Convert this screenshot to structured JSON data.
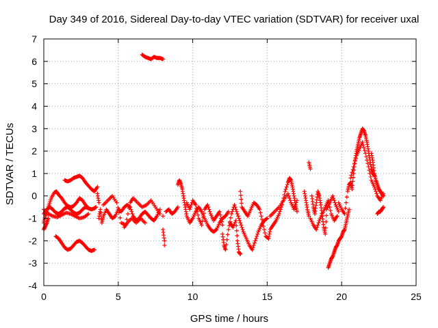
{
  "chart_data": {
    "type": "scatter",
    "title": "Day 349 of 2016, Sidereal Day-to-day VTEC variation (SDTVAR) for receiver uxal",
    "xlabel": "GPS time / hours",
    "ylabel": "SDTVAR / TECUs",
    "xlim": [
      0,
      25
    ],
    "ylim": [
      -4,
      7
    ],
    "xticks": [
      "0",
      "5",
      "10",
      "15",
      "20",
      "25"
    ],
    "yticks": [
      "-4",
      "-3",
      "-2",
      "-1",
      "0",
      "1",
      "2",
      "3",
      "4",
      "5",
      "6",
      "7"
    ],
    "grid": true,
    "marker": "+",
    "color": "#ff0000",
    "series": [
      {
        "name": "SDTVAR",
        "points": [
          [
            0.0,
            -1.2
          ],
          [
            0.1,
            -0.9
          ],
          [
            0.2,
            -0.7
          ],
          [
            0.35,
            -0.4
          ],
          [
            0.5,
            -0.1
          ],
          [
            0.7,
            0.15
          ],
          [
            0.85,
            0.2
          ],
          [
            1.0,
            0.05
          ],
          [
            1.2,
            -0.1
          ],
          [
            1.4,
            -0.3
          ],
          [
            1.6,
            -0.45
          ],
          [
            1.8,
            -0.5
          ],
          [
            2.0,
            -0.45
          ],
          [
            2.2,
            -0.3
          ],
          [
            2.4,
            -0.1
          ],
          [
            2.6,
            -0.2
          ],
          [
            2.8,
            -0.4
          ],
          [
            3.0,
            -0.55
          ],
          [
            3.2,
            -0.6
          ],
          [
            3.4,
            -0.55
          ],
          [
            3.5,
            -0.5
          ],
          [
            0.0,
            -0.8
          ],
          [
            0.2,
            -0.6
          ],
          [
            0.4,
            -0.5
          ],
          [
            0.6,
            -0.6
          ],
          [
            0.8,
            -0.75
          ],
          [
            1.0,
            -0.8
          ],
          [
            1.2,
            -0.7
          ],
          [
            1.4,
            -0.55
          ],
          [
            1.6,
            -0.5
          ],
          [
            1.8,
            -0.6
          ],
          [
            2.0,
            -0.75
          ],
          [
            2.2,
            -0.8
          ],
          [
            2.4,
            -0.75
          ],
          [
            2.6,
            -0.6
          ],
          [
            2.8,
            -0.5
          ],
          [
            3.0,
            -0.55
          ],
          [
            0.0,
            -0.6
          ],
          [
            0.3,
            -0.8
          ],
          [
            0.6,
            -0.9
          ],
          [
            0.9,
            -0.95
          ],
          [
            1.2,
            -0.85
          ],
          [
            1.5,
            -0.75
          ],
          [
            1.8,
            -0.8
          ],
          [
            2.1,
            -0.9
          ],
          [
            2.4,
            -1.0
          ],
          [
            2.7,
            -0.95
          ],
          [
            3.0,
            -0.8
          ],
          [
            0.0,
            -1.5
          ],
          [
            0.1,
            -1.35
          ],
          [
            0.2,
            -1.2
          ],
          [
            0.3,
            -1.0
          ],
          [
            0.8,
            -1.8
          ],
          [
            1.0,
            -1.9
          ],
          [
            1.2,
            -2.1
          ],
          [
            1.4,
            -2.3
          ],
          [
            1.6,
            -2.4
          ],
          [
            1.8,
            -2.35
          ],
          [
            2.0,
            -2.2
          ],
          [
            2.2,
            -2.05
          ],
          [
            2.4,
            -2.0
          ],
          [
            2.6,
            -2.1
          ],
          [
            2.8,
            -2.25
          ],
          [
            3.0,
            -2.4
          ],
          [
            3.2,
            -2.45
          ],
          [
            3.4,
            -2.4
          ],
          [
            1.4,
            0.7
          ],
          [
            1.6,
            0.65
          ],
          [
            1.8,
            0.7
          ],
          [
            2.0,
            0.8
          ],
          [
            2.2,
            0.85
          ],
          [
            2.4,
            0.9
          ],
          [
            2.6,
            0.8
          ],
          [
            2.8,
            0.6
          ],
          [
            3.0,
            0.45
          ],
          [
            3.2,
            0.3
          ],
          [
            3.4,
            0.2
          ],
          [
            3.6,
            0.4
          ],
          [
            3.6,
            0.1
          ],
          [
            3.7,
            -0.3
          ],
          [
            3.7,
            -1.0
          ],
          [
            3.8,
            -0.6
          ],
          [
            3.9,
            -1.2
          ],
          [
            4.0,
            -0.9
          ],
          [
            4.2,
            -0.6
          ],
          [
            4.4,
            -0.8
          ],
          [
            4.6,
            -1.0
          ],
          [
            4.8,
            -0.9
          ],
          [
            5.0,
            -0.6
          ],
          [
            5.2,
            -0.7
          ],
          [
            5.4,
            -0.5
          ],
          [
            5.6,
            -0.4
          ],
          [
            5.8,
            -0.5
          ],
          [
            6.0,
            -0.9
          ],
          [
            6.2,
            -1.1
          ],
          [
            6.4,
            -1.0
          ],
          [
            6.6,
            -0.8
          ],
          [
            6.8,
            -0.7
          ],
          [
            7.0,
            -0.85
          ],
          [
            7.2,
            -1.0
          ],
          [
            7.4,
            -1.1
          ],
          [
            7.6,
            -0.9
          ],
          [
            7.8,
            -0.6
          ],
          [
            4.0,
            -0.4
          ],
          [
            4.3,
            -0.2
          ],
          [
            4.6,
            0.0
          ],
          [
            4.9,
            -0.3
          ],
          [
            5.2,
            -1.2
          ],
          [
            5.5,
            -1.3
          ],
          [
            5.8,
            -0.3
          ],
          [
            6.0,
            -0.1
          ],
          [
            6.3,
            -0.3
          ],
          [
            6.6,
            -0.5
          ],
          [
            6.9,
            -0.4
          ],
          [
            7.2,
            -0.2
          ],
          [
            7.5,
            -0.5
          ],
          [
            7.8,
            -0.8
          ],
          [
            5.4,
            -1.4
          ],
          [
            5.6,
            -1.2
          ],
          [
            5.9,
            -1.0
          ],
          [
            6.2,
            -1.2
          ],
          [
            6.5,
            -1.0
          ],
          [
            6.8,
            -1.2
          ],
          [
            6.6,
            6.3
          ],
          [
            6.8,
            6.2
          ],
          [
            7.0,
            6.15
          ],
          [
            7.2,
            6.1
          ],
          [
            7.4,
            6.2
          ],
          [
            7.6,
            6.15
          ],
          [
            7.8,
            6.15
          ],
          [
            8.0,
            6.1
          ],
          [
            8.0,
            -0.9
          ],
          [
            8.0,
            -1.5
          ],
          [
            8.1,
            -2.0
          ],
          [
            8.1,
            -2.2
          ],
          [
            8.2,
            -0.7
          ],
          [
            8.4,
            -0.6
          ],
          [
            8.6,
            -0.8
          ],
          [
            8.8,
            -0.7
          ],
          [
            9.0,
            -0.5
          ],
          [
            9.0,
            0.5
          ],
          [
            9.1,
            0.7
          ],
          [
            9.2,
            0.55
          ],
          [
            9.3,
            0.3
          ],
          [
            9.4,
            -0.1
          ],
          [
            9.5,
            -0.5
          ],
          [
            9.6,
            -0.9
          ],
          [
            9.8,
            -1.2
          ],
          [
            10.0,
            -1.0
          ],
          [
            10.2,
            -0.7
          ],
          [
            10.4,
            -0.5
          ],
          [
            10.6,
            -0.7
          ],
          [
            10.8,
            -1.0
          ],
          [
            11.0,
            -1.3
          ],
          [
            11.2,
            -1.5
          ],
          [
            11.4,
            -1.6
          ],
          [
            11.6,
            -1.5
          ],
          [
            11.8,
            -1.2
          ],
          [
            12.0,
            -1.0
          ],
          [
            12.2,
            -0.9
          ],
          [
            12.4,
            -0.7
          ],
          [
            9.6,
            -0.3
          ],
          [
            9.8,
            -0.6
          ],
          [
            10.0,
            -0.2
          ],
          [
            10.2,
            -0.4
          ],
          [
            10.4,
            -1.0
          ],
          [
            10.6,
            -1.3
          ],
          [
            10.8,
            -0.6
          ],
          [
            11.0,
            -0.4
          ],
          [
            11.2,
            -0.8
          ],
          [
            11.4,
            -1.1
          ],
          [
            11.6,
            -0.9
          ],
          [
            11.8,
            -0.7
          ],
          [
            12.0,
            -1.3
          ],
          [
            12.0,
            -1.7
          ],
          [
            12.1,
            -2.2
          ],
          [
            12.2,
            -2.4
          ],
          [
            12.4,
            -1.5
          ],
          [
            12.6,
            -0.8
          ],
          [
            12.8,
            -0.4
          ],
          [
            13.0,
            -0.8
          ],
          [
            13.2,
            -1.2
          ],
          [
            13.4,
            -1.6
          ],
          [
            13.6,
            -1.9
          ],
          [
            13.8,
            -2.2
          ],
          [
            14.0,
            -2.4
          ],
          [
            14.2,
            -2.0
          ],
          [
            14.4,
            -1.6
          ],
          [
            14.6,
            -1.3
          ],
          [
            14.8,
            -1.1
          ],
          [
            15.0,
            -1.0
          ],
          [
            12.5,
            -1.2
          ],
          [
            12.7,
            -1.4
          ],
          [
            12.9,
            -1.1
          ],
          [
            13.0,
            -2.0
          ],
          [
            13.1,
            -2.5
          ],
          [
            13.2,
            -2.6
          ],
          [
            13.2,
            0.2
          ],
          [
            13.3,
            -0.5
          ],
          [
            13.5,
            -0.7
          ],
          [
            13.7,
            -0.9
          ],
          [
            13.9,
            -0.6
          ],
          [
            14.1,
            -0.3
          ],
          [
            14.3,
            -0.4
          ],
          [
            14.5,
            -0.6
          ],
          [
            14.7,
            -1.2
          ],
          [
            14.9,
            -1.8
          ],
          [
            15.1,
            -1.9
          ],
          [
            15.2,
            -1.5
          ],
          [
            15.4,
            -1.3
          ],
          [
            15.6,
            -1.1
          ],
          [
            15.8,
            -0.8
          ],
          [
            16.0,
            -0.4
          ],
          [
            16.2,
            0.2
          ],
          [
            16.4,
            0.6
          ],
          [
            16.5,
            0.8
          ],
          [
            16.6,
            0.7
          ],
          [
            16.7,
            0.4
          ],
          [
            16.8,
            0.0
          ],
          [
            16.9,
            -0.4
          ],
          [
            17.0,
            -0.7
          ],
          [
            15.2,
            -0.9
          ],
          [
            15.5,
            -0.7
          ],
          [
            15.8,
            -0.5
          ],
          [
            16.1,
            -0.2
          ],
          [
            16.4,
            0.1
          ],
          [
            16.6,
            -0.3
          ],
          [
            16.8,
            -0.6
          ],
          [
            17.0,
            -0.2
          ],
          [
            17.5,
            0.2
          ],
          [
            17.6,
            -0.2
          ],
          [
            17.7,
            -0.6
          ],
          [
            17.8,
            -0.9
          ],
          [
            17.8,
            1.5
          ],
          [
            17.9,
            1.2
          ],
          [
            18.0,
            0.0
          ],
          [
            18.1,
            -0.5
          ],
          [
            18.2,
            -0.8
          ],
          [
            18.3,
            -0.3
          ],
          [
            18.4,
            0.2
          ],
          [
            18.5,
            0.0
          ],
          [
            18.6,
            -0.4
          ],
          [
            18.7,
            -0.9
          ],
          [
            18.8,
            -1.4
          ],
          [
            18.9,
            -1.7
          ],
          [
            19.0,
            -0.6
          ],
          [
            19.2,
            -0.3
          ],
          [
            19.4,
            0.0
          ],
          [
            19.6,
            -0.4
          ],
          [
            19.8,
            -0.7
          ],
          [
            17.9,
            -1.0
          ],
          [
            18.1,
            -1.3
          ],
          [
            18.3,
            -1.5
          ],
          [
            18.5,
            -1.1
          ],
          [
            18.7,
            -0.8
          ],
          [
            18.9,
            -0.5
          ],
          [
            19.1,
            -0.2
          ],
          [
            19.3,
            -0.8
          ],
          [
            19.5,
            -1.1
          ],
          [
            19.7,
            -0.9
          ],
          [
            19.1,
            -3.2
          ],
          [
            19.2,
            -3.0
          ],
          [
            19.3,
            -2.8
          ],
          [
            19.4,
            -2.7
          ],
          [
            19.5,
            -2.5
          ],
          [
            19.6,
            -2.3
          ],
          [
            19.7,
            -2.2
          ],
          [
            19.8,
            -2.0
          ],
          [
            19.9,
            -1.9
          ],
          [
            20.0,
            -1.8
          ],
          [
            20.1,
            -1.6
          ],
          [
            20.2,
            -1.5
          ],
          [
            20.3,
            -1.2
          ],
          [
            20.4,
            -0.9
          ],
          [
            20.5,
            -0.6
          ],
          [
            19.8,
            -0.3
          ],
          [
            20.0,
            -0.6
          ],
          [
            20.2,
            -0.8
          ],
          [
            20.4,
            0.2
          ],
          [
            20.5,
            0.5
          ],
          [
            20.6,
            0.6
          ],
          [
            20.7,
            0.3
          ],
          [
            20.8,
            1.0
          ],
          [
            20.9,
            1.6
          ],
          [
            21.0,
            2.0
          ],
          [
            21.1,
            2.3
          ],
          [
            21.2,
            2.6
          ],
          [
            21.3,
            2.8
          ],
          [
            21.4,
            3.0
          ],
          [
            21.5,
            2.9
          ],
          [
            21.6,
            2.7
          ],
          [
            21.7,
            2.4
          ],
          [
            21.8,
            2.0
          ],
          [
            21.9,
            1.6
          ],
          [
            22.0,
            1.2
          ],
          [
            22.1,
            1.0
          ],
          [
            22.2,
            0.9
          ],
          [
            20.6,
            0.8
          ],
          [
            20.8,
            1.3
          ],
          [
            21.0,
            1.8
          ],
          [
            21.2,
            2.1
          ],
          [
            21.4,
            2.4
          ],
          [
            21.6,
            1.9
          ],
          [
            21.8,
            1.3
          ],
          [
            22.0,
            0.7
          ],
          [
            22.2,
            0.4
          ],
          [
            22.4,
            0.0
          ],
          [
            22.6,
            -0.2
          ],
          [
            22.8,
            0.1
          ],
          [
            22.0,
            1.9
          ],
          [
            22.1,
            1.5
          ],
          [
            22.2,
            1.0
          ],
          [
            22.3,
            0.7
          ],
          [
            22.4,
            0.5
          ],
          [
            22.5,
            0.3
          ],
          [
            22.6,
            0.2
          ],
          [
            22.7,
            0.1
          ],
          [
            22.8,
            0.0
          ],
          [
            22.4,
            -0.8
          ],
          [
            22.5,
            -0.7
          ],
          [
            22.6,
            -0.7
          ],
          [
            22.7,
            -0.6
          ],
          [
            22.8,
            -0.5
          ]
        ]
      }
    ]
  }
}
